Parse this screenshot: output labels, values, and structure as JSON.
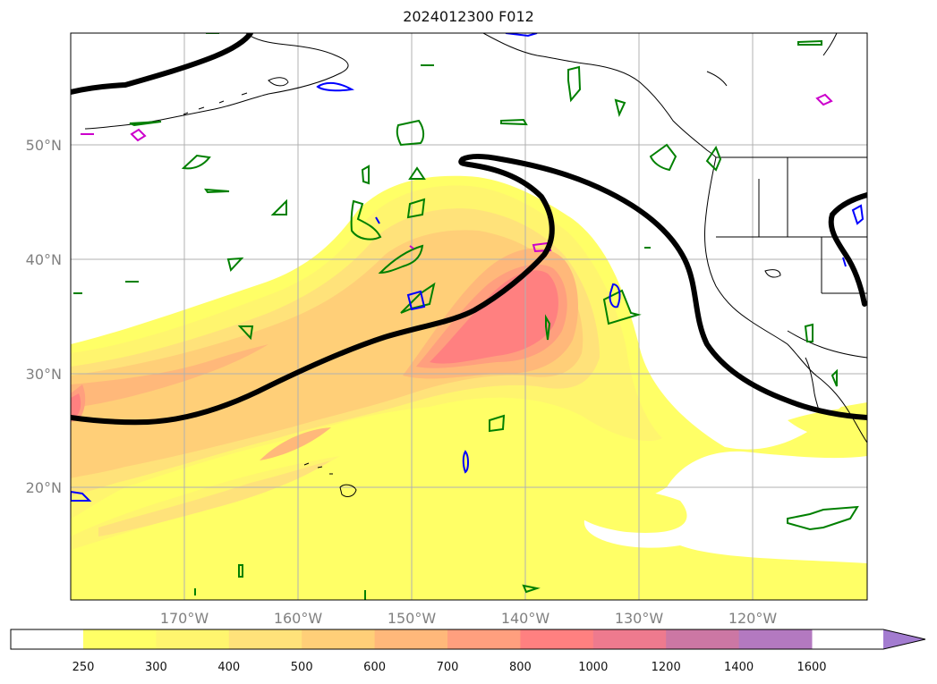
{
  "title": "2024012300 F012",
  "lat_labels": [
    "50°N",
    "40°N",
    "30°N",
    "20°N"
  ],
  "lon_labels": [
    "170°W",
    "160°W",
    "150°W",
    "140°W",
    "130°W",
    "120°W"
  ],
  "colorbar": {
    "levels": [
      "250",
      "300",
      "400",
      "500",
      "600",
      "700",
      "800",
      "1000",
      "1200",
      "1400",
      "1600"
    ],
    "colors": [
      "#ffffff",
      "#ffff66",
      "#fff56e",
      "#ffe27a",
      "#ffcf78",
      "#ffb87a",
      "#ff9f7e",
      "#ff8080",
      "#ee7a8e",
      "#cc77a4",
      "#b379c0",
      "#a37cd0"
    ]
  },
  "contour_colors": {
    "jet": "#000000",
    "green": "#008000",
    "blue": "#0000ff",
    "magenta": "#cc00cc"
  }
}
